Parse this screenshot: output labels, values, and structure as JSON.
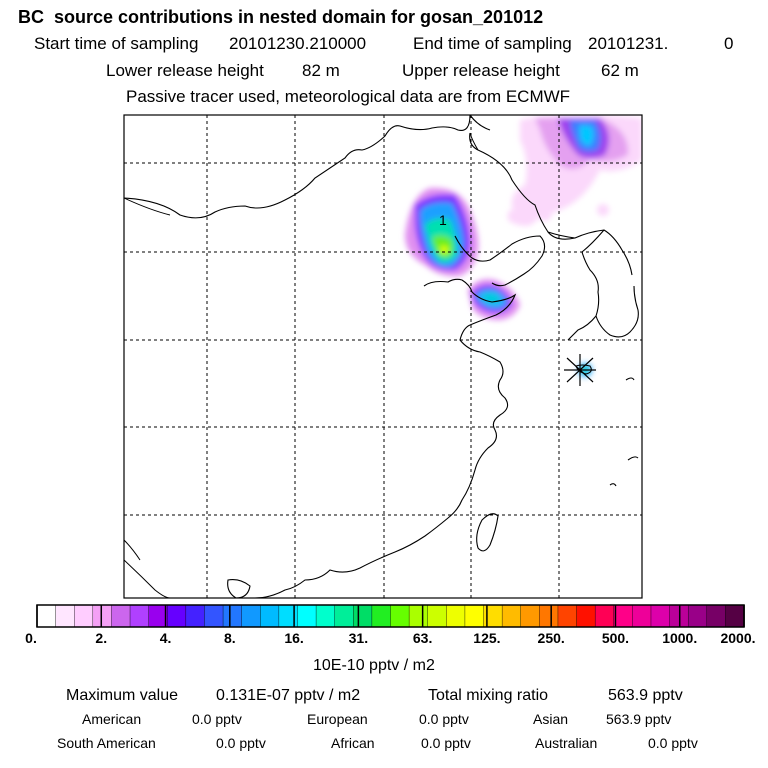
{
  "header": {
    "title": "BC  source contributions in nested domain for gosan_201012",
    "start_label": "Start time of sampling",
    "start_value": "20101230.210000",
    "end_label": "End time of sampling",
    "end_value": "20101231.",
    "end_suffix": "0",
    "lower_label": "Lower release height",
    "lower_value": "82 m",
    "upper_label": "Upper release height",
    "upper_value": "62 m",
    "note": "Passive tracer used, meteorological data are from ECMWF"
  },
  "map": {
    "contour_label": "1",
    "receptor_marker": "star-icon"
  },
  "colorbar": {
    "ticks": [
      "0.",
      "2.",
      "4.",
      "8.",
      "16.",
      "31.",
      "63.",
      "125.",
      "250.",
      "500.",
      "1000.",
      "2000."
    ],
    "colors": [
      "#ffffff",
      "#ffe6ff",
      "#ffcdff",
      "#f4a0f5",
      "#cc66ee",
      "#b040ff",
      "#9900ee",
      "#6600ff",
      "#4422ff",
      "#3355ff",
      "#2277ff",
      "#1199ff",
      "#00bbff",
      "#00ddff",
      "#00ffff",
      "#00ffcc",
      "#00ee99",
      "#00dd66",
      "#22ee22",
      "#66ff00",
      "#aaff00",
      "#ccff00",
      "#eeff00",
      "#ffff00",
      "#ffdd00",
      "#ffbb00",
      "#ff9900",
      "#ff7700",
      "#ff4400",
      "#ff1100",
      "#ff0055",
      "#ff0088",
      "#ee0099",
      "#dd00aa",
      "#bb0099",
      "#990088",
      "#770066",
      "#550044"
    ],
    "unit": "10E-10 pptv / m2"
  },
  "stats": {
    "max_label": "Maximum value",
    "max_value": "0.131E-07 pptv / m2",
    "total_label": "Total mixing ratio",
    "total_value": "563.9 pptv",
    "regions": [
      {
        "name": "American",
        "value": "0.0 pptv"
      },
      {
        "name": "European",
        "value": "0.0 pptv"
      },
      {
        "name": "Asian",
        "value": "563.9 pptv"
      },
      {
        "name": "South American",
        "value": "0.0 pptv"
      },
      {
        "name": "African",
        "value": "0.0 pptv"
      },
      {
        "name": "Australian",
        "value": "0.0 pptv"
      }
    ]
  }
}
